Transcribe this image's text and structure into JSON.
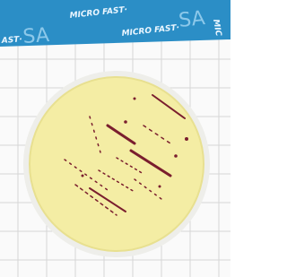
{
  "banner": {
    "texts": [
      "AST·",
      "SA",
      "MICRO FAST·",
      "MICRO FAST·",
      "SA",
      "MIC"
    ]
  }
}
